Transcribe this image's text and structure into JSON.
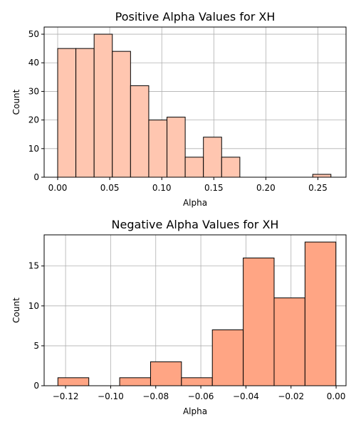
{
  "chart_data": [
    {
      "type": "bar",
      "title": "Positive Alpha Values for XH",
      "xlabel": "Alpha",
      "ylabel": "Count",
      "color": "#ffc6b0",
      "grid": true,
      "xlim": [
        -0.013,
        0.277
      ],
      "ylim": [
        0,
        52.5
      ],
      "xticks": [
        0.0,
        0.05,
        0.1,
        0.15,
        0.2,
        0.25
      ],
      "xtick_labels": [
        "0.00",
        "0.05",
        "0.10",
        "0.15",
        "0.20",
        "0.25"
      ],
      "yticks": [
        0,
        10,
        20,
        30,
        40,
        50
      ],
      "ytick_labels": [
        "0",
        "10",
        "20",
        "30",
        "40",
        "50"
      ],
      "bins": [
        [
          0.0,
          0.0175
        ],
        [
          0.0175,
          0.035
        ],
        [
          0.035,
          0.0525
        ],
        [
          0.0525,
          0.07
        ],
        [
          0.07,
          0.0875
        ],
        [
          0.0875,
          0.105
        ],
        [
          0.105,
          0.1225
        ],
        [
          0.1225,
          0.14
        ],
        [
          0.14,
          0.1575
        ],
        [
          0.1575,
          0.175
        ],
        [
          0.175,
          0.1925
        ],
        [
          0.1925,
          0.21
        ],
        [
          0.21,
          0.2275
        ],
        [
          0.2275,
          0.245
        ],
        [
          0.245,
          0.2625
        ]
      ],
      "values": [
        45,
        45,
        50,
        44,
        32,
        20,
        21,
        7,
        14,
        7,
        0,
        0,
        0,
        0,
        1
      ]
    },
    {
      "type": "bar",
      "title": "Negative Alpha Values for XH",
      "xlabel": "Alpha",
      "ylabel": "Count",
      "color": "#ffa584",
      "grid": true,
      "xlim": [
        -0.1295,
        0.0044
      ],
      "ylim": [
        0,
        18.9
      ],
      "xticks": [
        -0.12,
        -0.1,
        -0.08,
        -0.06,
        -0.04,
        -0.02,
        0.0
      ],
      "xtick_labels": [
        "−0.12",
        "−0.10",
        "−0.08",
        "−0.06",
        "−0.04",
        "−0.02",
        "0.00"
      ],
      "yticks": [
        0,
        5,
        10,
        15
      ],
      "ytick_labels": [
        "0",
        "5",
        "10",
        "15"
      ],
      "bins": [
        [
          -0.1234,
          -0.1097
        ],
        [
          -0.1097,
          -0.096
        ],
        [
          -0.096,
          -0.0823
        ],
        [
          -0.0823,
          -0.0686
        ],
        [
          -0.0686,
          -0.0549
        ],
        [
          -0.0549,
          -0.0412
        ],
        [
          -0.0412,
          -0.0275
        ],
        [
          -0.0275,
          -0.0138
        ],
        [
          -0.0138,
          -0.0001
        ]
      ],
      "values": [
        1,
        0,
        1,
        3,
        1,
        7,
        16,
        11,
        18
      ]
    }
  ]
}
